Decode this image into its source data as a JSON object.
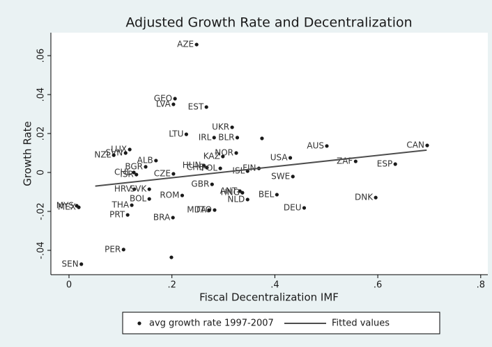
{
  "chart_data": {
    "type": "scatter",
    "title": "Adjusted Growth Rate and Decentralization",
    "x_label": "Fiscal Decentralization IMF",
    "y_label": "Growth Rate",
    "xlim": [
      -0.0352,
      0.8138
    ],
    "ylim": [
      -0.0525,
      0.0718
    ],
    "xticks": [
      0,
      {
        "value": 0.2,
        "label": ".2"
      },
      {
        "value": 0.4,
        "label": ".4"
      },
      {
        "value": 0.6,
        "label": ".6"
      },
      {
        "value": 0.8,
        "label": ".8"
      }
    ],
    "yticks": [
      {
        "value": -0.04,
        "label": "-.04"
      },
      {
        "value": -0.02,
        "label": "-.02"
      },
      0,
      {
        "value": 0.02,
        "label": ".02"
      },
      {
        "value": 0.04,
        "label": ".04"
      },
      {
        "value": 0.06,
        "label": ".06"
      }
    ],
    "legend": "bottom",
    "series": [
      {
        "name": "avg growth rate 1997-2007",
        "type": "scatter",
        "color": "#1a1a1a",
        "labels": [
          "AZE",
          "GEO",
          "LVA",
          "EST",
          "UKR",
          "LTU",
          "IRL",
          "BLR",
          null,
          "AUS",
          "CAN",
          "LUX",
          "SVN",
          "NZL",
          "NOR",
          "KAZ",
          "ALB",
          "USA",
          "ZAF",
          "ESP",
          "HUN",
          "BGR",
          "CHE",
          "POL",
          "FIN",
          "ISL",
          "CHL",
          "ISR",
          "CZE",
          "SWE",
          "GBR",
          "HRV",
          "SVK",
          "ANT",
          "HNG",
          "ROM",
          "BEL",
          "DNK",
          "BOL",
          "NLD",
          "THA",
          "MYS",
          "MEX",
          "PRT",
          "MDA",
          "TTO",
          "DEU",
          "BRA",
          "PER",
          null,
          "SEN"
        ],
        "x": [
          0.248,
          0.206,
          0.203,
          0.267,
          0.317,
          0.228,
          0.282,
          0.327,
          0.375,
          0.501,
          0.696,
          0.118,
          0.11,
          0.087,
          0.325,
          0.299,
          0.169,
          0.43,
          0.557,
          0.634,
          0.262,
          0.149,
          0.268,
          0.294,
          0.369,
          0.347,
          0.126,
          0.131,
          0.203,
          0.435,
          0.278,
          0.127,
          0.156,
          0.332,
          0.337,
          0.22,
          0.404,
          0.596,
          0.156,
          0.347,
          0.122,
          0.015,
          0.019,
          0.114,
          0.272,
          0.283,
          0.457,
          0.202,
          0.106,
          0.199,
          0.024
        ],
        "values": [
          0.0657,
          0.0379,
          0.035,
          0.0336,
          0.0232,
          0.0196,
          0.0179,
          0.0179,
          0.0175,
          0.0136,
          0.0139,
          0.0118,
          0.01,
          0.0089,
          0.01,
          0.0082,
          0.0061,
          0.0075,
          0.0057,
          0.0043,
          0.0036,
          0.0029,
          0.0025,
          0.0021,
          0.0021,
          0.0007,
          0,
          -0.0011,
          -0.0007,
          -0.0021,
          -0.0061,
          -0.0086,
          -0.0086,
          -0.0096,
          -0.0104,
          -0.0118,
          -0.0114,
          -0.0129,
          -0.0136,
          -0.0139,
          -0.0168,
          -0.0171,
          -0.0179,
          -0.0218,
          -0.0193,
          -0.0193,
          -0.0182,
          -0.0232,
          -0.0396,
          -0.0436,
          -0.0471
        ]
      },
      {
        "name": "Fitted values",
        "type": "line",
        "color": "#4d4d4d",
        "x": [
          0.051,
          0.695
        ],
        "values": [
          -0.007,
          0.0115
        ]
      }
    ]
  }
}
